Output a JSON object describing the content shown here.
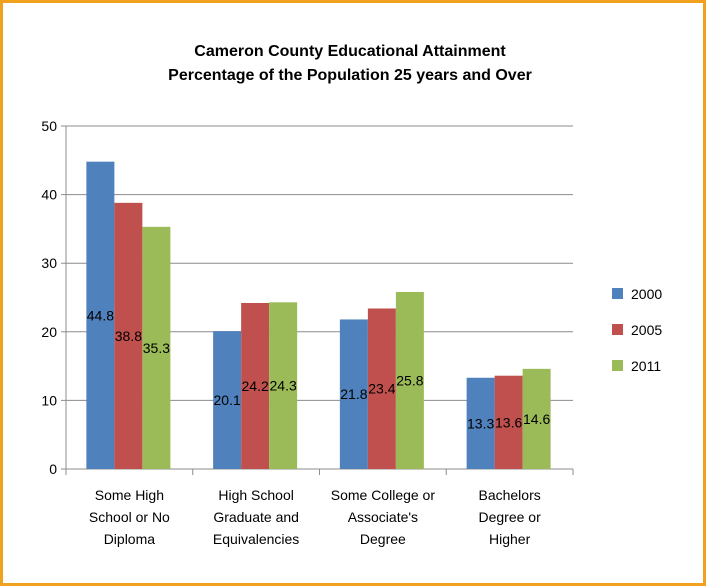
{
  "chart_data": {
    "type": "bar",
    "title_lines": [
      "Cameron County Educational  Attainment",
      "Percentage of the Population  25 years and Over"
    ],
    "categories": [
      [
        "Some High",
        "School or No",
        "Diploma"
      ],
      [
        "High School",
        "Graduate  and",
        "Equivalencies"
      ],
      [
        "Some College or",
        "Associate's",
        "Degree"
      ],
      [
        "Bachelors",
        "Degree or",
        "Higher"
      ]
    ],
    "series": [
      {
        "name": "2000",
        "color": "#4f81bd",
        "values": [
          44.8,
          20.1,
          21.8,
          13.3
        ],
        "labels": [
          "44.8",
          "20.1",
          "21.8",
          "13.3"
        ]
      },
      {
        "name": "2005",
        "color": "#c0504d",
        "values": [
          38.8,
          24.2,
          23.4,
          13.6
        ],
        "labels": [
          "38.8",
          "24.2",
          "23.4",
          "13.6"
        ]
      },
      {
        "name": "2011",
        "color": "#9bbb59",
        "values": [
          35.3,
          24.3,
          25.8,
          14.6
        ],
        "labels": [
          "35.3",
          "24.3",
          "25.8",
          "14.6"
        ]
      }
    ],
    "yticks": [
      "0",
      "10",
      "20",
      "30",
      "40",
      "50"
    ],
    "ylim": [
      0,
      50
    ],
    "grid": true,
    "legend": "right"
  }
}
